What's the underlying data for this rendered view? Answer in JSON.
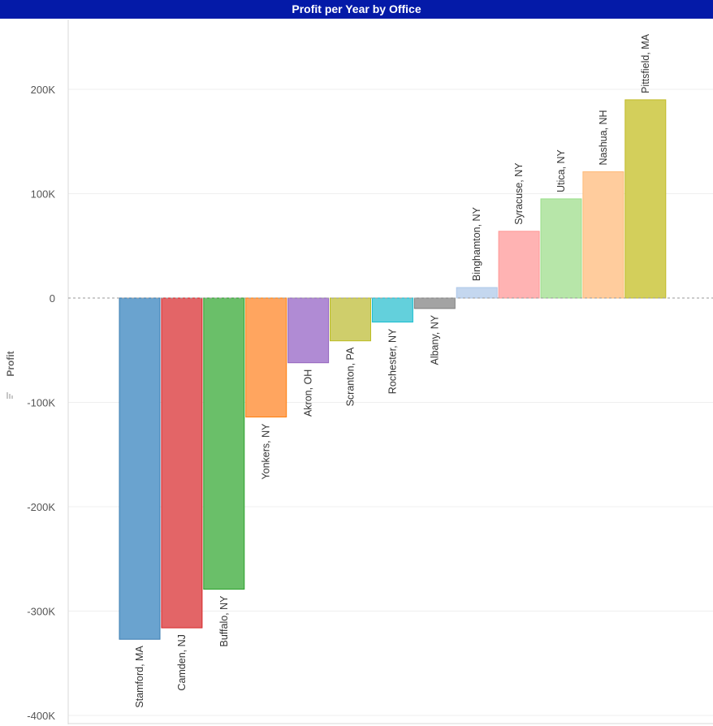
{
  "header": {
    "title": "Profit per Year by Office",
    "background": "#041aa8"
  },
  "chart_data": {
    "type": "bar",
    "title": "Profit per Year by Office",
    "xlabel": "",
    "ylabel": "Profit",
    "ylim": [
      -400000,
      270000
    ],
    "yticks": [
      200000,
      100000,
      0,
      -100000,
      -200000,
      -300000,
      -400000
    ],
    "ytick_labels": [
      "200K",
      "100K",
      "0",
      "-100K",
      "-200K",
      "-300K",
      "-400K"
    ],
    "grid": true,
    "categories": [
      "Stamford, MA",
      "Camden, NJ",
      "Buffalo, NY",
      "Yonkers, NY",
      "Akron, OH",
      "Scranton, PA",
      "Rochester, NY",
      "Albany, NY",
      "Binghamton, NY",
      "Syracuse, NY",
      "Utica, NY",
      "Nashua, NH",
      "Pittsfield, MA"
    ],
    "values": [
      -327000,
      -316000,
      -279000,
      -114000,
      -62000,
      -41000,
      -23000,
      -10000,
      10000,
      64000,
      95000,
      121000,
      190000
    ],
    "colors": [
      "#6aa3cf",
      "#e36567",
      "#6abf69",
      "#ffa55f",
      "#b08bd4",
      "#cfce6b",
      "#63d0dc",
      "#a3a3a3",
      "#c4d7ef",
      "#ffb3b3",
      "#b7e6a9",
      "#ffcc9d",
      "#d3cf5b"
    ],
    "borders": [
      "#3b7cb0",
      "#d62728",
      "#2ca02c",
      "#ff7f0e",
      "#9467bd",
      "#bcbd22",
      "#17becf",
      "#7f7f7f",
      "#aec7e8",
      "#ff9896",
      "#98df8a",
      "#ffbb78",
      "#c2bb2a"
    ]
  }
}
